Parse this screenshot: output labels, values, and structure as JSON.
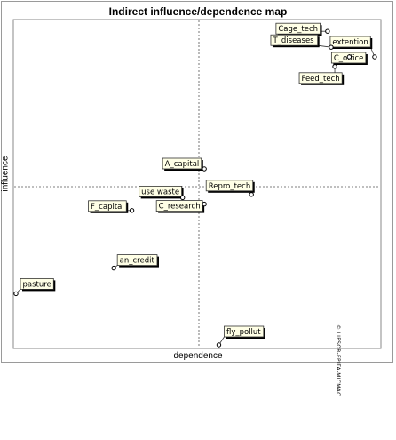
{
  "chart_data": {
    "type": "scatter",
    "title": "Indirect influence/dependence map",
    "xlabel": "dependence",
    "ylabel": "influence",
    "watermark": "© LIPSOR-EPITA-MICMAC",
    "grid": "dashed quadrant lines",
    "colors": {
      "label_fill": "#ffffe6",
      "label_border": "#333333",
      "shadow": "#000000",
      "point": "#000000",
      "quadrant_line": "#555555"
    },
    "points": [
      {
        "name": "Cage_tech",
        "x": 0.86,
        "y": 0.98
      },
      {
        "name": "extention",
        "x": 0.99,
        "y": 0.9
      },
      {
        "name": "T_diseases",
        "x": 0.87,
        "y": 0.93
      },
      {
        "name": "C_office",
        "x": 0.92,
        "y": 0.9
      },
      {
        "name": "Feed_tech",
        "x": 0.88,
        "y": 0.87
      },
      {
        "name": "A_capital",
        "x": 0.52,
        "y": 0.55
      },
      {
        "name": "use waste",
        "x": 0.46,
        "y": 0.46
      },
      {
        "name": "Repro_tech",
        "x": 0.65,
        "y": 0.47
      },
      {
        "name": "C_research",
        "x": 0.52,
        "y": 0.44
      },
      {
        "name": "F_capital",
        "x": 0.32,
        "y": 0.42
      },
      {
        "name": "an_credit",
        "x": 0.27,
        "y": 0.24
      },
      {
        "name": "pasture",
        "x": 0.0,
        "y": 0.16
      },
      {
        "name": "fly_pollut",
        "x": 0.56,
        "y": 0.0
      }
    ]
  }
}
